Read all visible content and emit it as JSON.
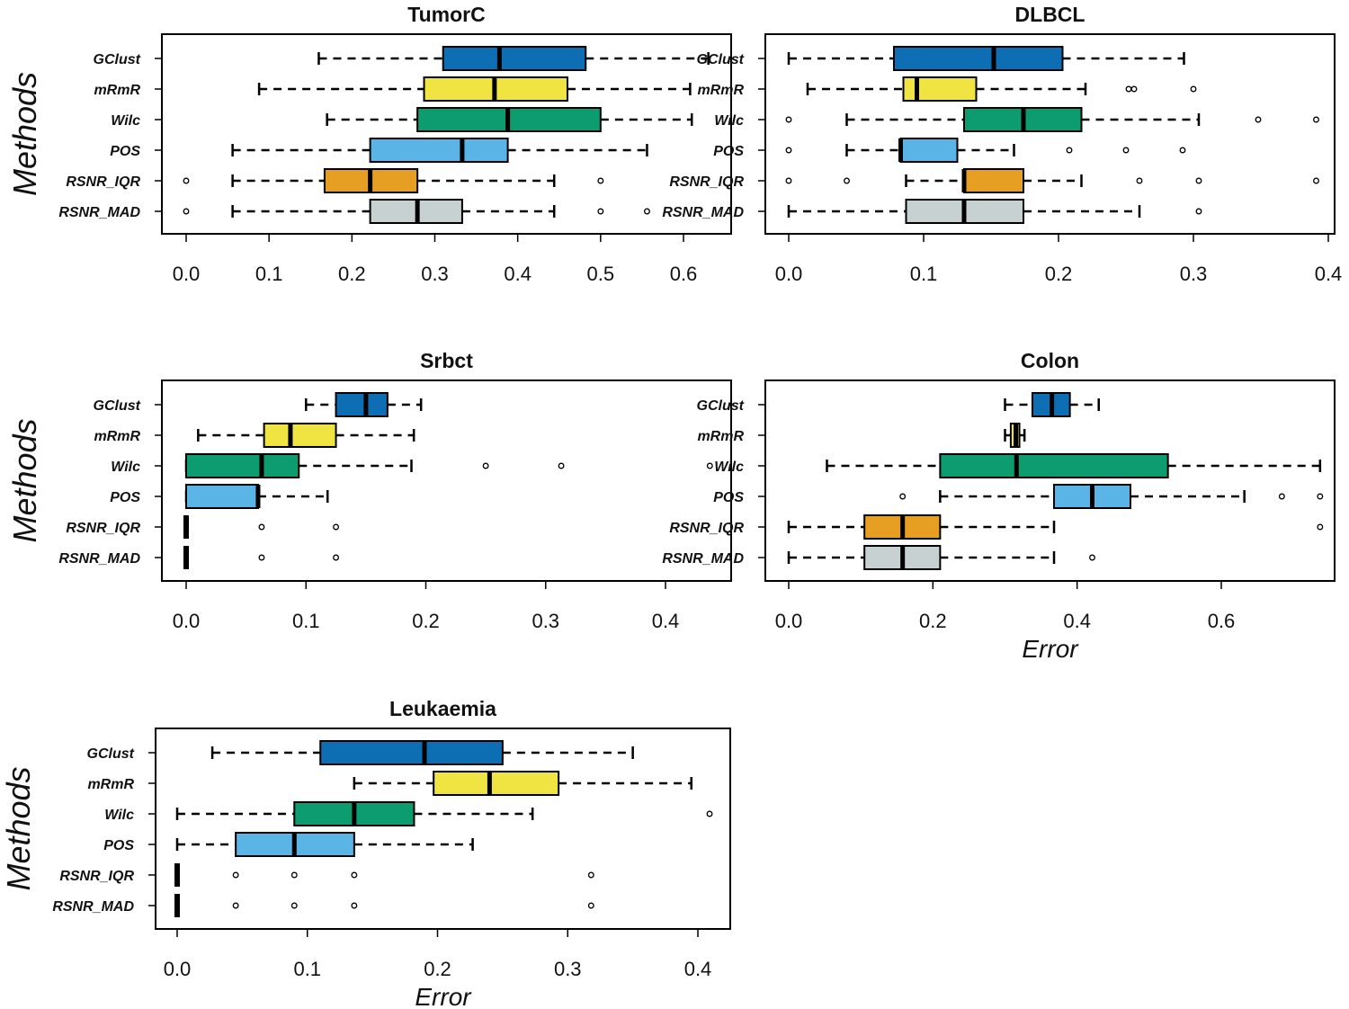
{
  "figure": {
    "ylabel": "Methods",
    "xlabel": "Error",
    "categories": [
      "GClust",
      "mRmR",
      "Wilc",
      "POS",
      "RSNR_IQR",
      "RSNR_MAD"
    ],
    "colors": {
      "GClust": "#0d6eb3",
      "mRmR": "#f0e442",
      "Wilc": "#0d9b70",
      "POS": "#5ab4e6",
      "RSNR_IQR": "#e69f22",
      "RSNR_MAD": "#c8d1d1"
    }
  },
  "chart_data": [
    {
      "type": "boxplot",
      "title": "TumorC",
      "xlabel": "",
      "ylabel": "Methods",
      "xlim": [
        0.0,
        0.65
      ],
      "ticks": [
        0.0,
        0.1,
        0.2,
        0.3,
        0.4,
        0.5,
        0.6
      ],
      "tick_labels": [
        "0.0",
        "0.1",
        "0.2",
        "0.3",
        "0.4",
        "0.5",
        "0.6"
      ],
      "boxes": [
        {
          "name": "GClust",
          "whisker_low": 0.16,
          "q1": 0.31,
          "median": 0.378,
          "q3": 0.482,
          "whisker_high": 0.63,
          "outliers": []
        },
        {
          "name": "mRmR",
          "whisker_low": 0.088,
          "q1": 0.287,
          "median": 0.372,
          "q3": 0.46,
          "whisker_high": 0.608,
          "outliers": []
        },
        {
          "name": "Wilc",
          "whisker_low": 0.17,
          "q1": 0.279,
          "median": 0.388,
          "q3": 0.5,
          "whisker_high": 0.61,
          "outliers": []
        },
        {
          "name": "POS",
          "whisker_low": 0.056,
          "q1": 0.222,
          "median": 0.333,
          "q3": 0.388,
          "whisker_high": 0.556,
          "outliers": []
        },
        {
          "name": "RSNR_IQR",
          "whisker_low": 0.056,
          "q1": 0.167,
          "median": 0.222,
          "q3": 0.279,
          "whisker_high": 0.444,
          "outliers": [
            0.0,
            0.5
          ]
        },
        {
          "name": "RSNR_MAD",
          "whisker_low": 0.056,
          "q1": 0.222,
          "median": 0.279,
          "q3": 0.333,
          "whisker_high": 0.444,
          "outliers": [
            0.0,
            0.5,
            0.556
          ]
        }
      ]
    },
    {
      "type": "boxplot",
      "title": "DLBCL",
      "xlabel": "",
      "ylabel": "",
      "xlim": [
        0.0,
        0.4
      ],
      "ticks": [
        0.0,
        0.1,
        0.2,
        0.3,
        0.4
      ],
      "tick_labels": [
        "0.0",
        "0.1",
        "0.2",
        "0.3",
        "0.4"
      ],
      "boxes": [
        {
          "name": "GClust",
          "whisker_low": 0.0,
          "q1": 0.078,
          "median": 0.152,
          "q3": 0.203,
          "whisker_high": 0.293,
          "outliers": []
        },
        {
          "name": "mRmR",
          "whisker_low": 0.014,
          "q1": 0.085,
          "median": 0.095,
          "q3": 0.139,
          "whisker_high": 0.22,
          "outliers": [
            0.252,
            0.256,
            0.3
          ]
        },
        {
          "name": "Wilc",
          "whisker_low": 0.043,
          "q1": 0.13,
          "median": 0.174,
          "q3": 0.217,
          "whisker_high": 0.304,
          "outliers": [
            0.0,
            0.348,
            0.391
          ]
        },
        {
          "name": "POS",
          "whisker_low": 0.043,
          "q1": 0.083,
          "median": 0.083,
          "q3": 0.125,
          "whisker_high": 0.167,
          "outliers": [
            0.0,
            0.208,
            0.25,
            0.292
          ]
        },
        {
          "name": "RSNR_IQR",
          "whisker_low": 0.087,
          "q1": 0.13,
          "median": 0.13,
          "q3": 0.174,
          "whisker_high": 0.217,
          "outliers": [
            0.0,
            0.043,
            0.26,
            0.304,
            0.391
          ]
        },
        {
          "name": "RSNR_MAD",
          "whisker_low": 0.0,
          "q1": 0.087,
          "median": 0.13,
          "q3": 0.174,
          "whisker_high": 0.26,
          "outliers": [
            0.304
          ]
        }
      ]
    },
    {
      "type": "boxplot",
      "title": "Srbct",
      "xlabel": "",
      "ylabel": "Methods",
      "xlim": [
        0.0,
        0.44
      ],
      "ticks": [
        0.0,
        0.1,
        0.2,
        0.3,
        0.4
      ],
      "tick_labels": [
        "0.0",
        "0.1",
        "0.2",
        "0.3",
        "0.4"
      ],
      "boxes": [
        {
          "name": "GClust",
          "whisker_low": 0.1,
          "q1": 0.125,
          "median": 0.15,
          "q3": 0.168,
          "whisker_high": 0.196,
          "outliers": []
        },
        {
          "name": "mRmR",
          "whisker_low": 0.01,
          "q1": 0.065,
          "median": 0.087,
          "q3": 0.125,
          "whisker_high": 0.19,
          "outliers": []
        },
        {
          "name": "Wilc",
          "whisker_low": 0.0,
          "q1": 0.0,
          "median": 0.063,
          "q3": 0.094,
          "whisker_high": 0.188,
          "outliers": [
            0.25,
            0.313,
            0.437
          ]
        },
        {
          "name": "POS",
          "whisker_low": 0.0,
          "q1": 0.0,
          "median": 0.06,
          "q3": 0.06,
          "whisker_high": 0.118,
          "outliers": []
        },
        {
          "name": "RSNR_IQR",
          "whisker_low": 0.0,
          "q1": 0.0,
          "median": 0.0,
          "q3": 0.0,
          "whisker_high": 0.0,
          "outliers": [
            0.063,
            0.125
          ]
        },
        {
          "name": "RSNR_MAD",
          "whisker_low": 0.0,
          "q1": 0.0,
          "median": 0.0,
          "q3": 0.0,
          "whisker_high": 0.0,
          "outliers": [
            0.063,
            0.125
          ]
        }
      ]
    },
    {
      "type": "boxplot",
      "title": "Colon",
      "xlabel": "Error",
      "ylabel": "",
      "xlim": [
        0.0,
        0.75
      ],
      "ticks": [
        0.0,
        0.2,
        0.4,
        0.6
      ],
      "tick_labels": [
        "0.0",
        "0.2",
        "0.4",
        "0.6"
      ],
      "boxes": [
        {
          "name": "GClust",
          "whisker_low": 0.3,
          "q1": 0.338,
          "median": 0.365,
          "q3": 0.39,
          "whisker_high": 0.43,
          "outliers": []
        },
        {
          "name": "mRmR",
          "whisker_low": 0.3,
          "q1": 0.308,
          "median": 0.315,
          "q3": 0.32,
          "whisker_high": 0.327,
          "outliers": []
        },
        {
          "name": "Wilc",
          "whisker_low": 0.053,
          "q1": 0.21,
          "median": 0.316,
          "q3": 0.526,
          "whisker_high": 0.737,
          "outliers": []
        },
        {
          "name": "POS",
          "whisker_low": 0.21,
          "q1": 0.368,
          "median": 0.421,
          "q3": 0.474,
          "whisker_high": 0.632,
          "outliers": [
            0.158,
            0.684,
            0.737
          ]
        },
        {
          "name": "RSNR_IQR",
          "whisker_low": 0.0,
          "q1": 0.105,
          "median": 0.158,
          "q3": 0.21,
          "whisker_high": 0.368,
          "outliers": [
            0.737
          ]
        },
        {
          "name": "RSNR_MAD",
          "whisker_low": 0.0,
          "q1": 0.105,
          "median": 0.158,
          "q3": 0.21,
          "whisker_high": 0.368,
          "outliers": [
            0.421
          ]
        }
      ]
    },
    {
      "type": "boxplot",
      "title": "Leukaemia",
      "xlabel": "Error",
      "ylabel": "Methods",
      "xlim": [
        0.0,
        0.42
      ],
      "ticks": [
        0.0,
        0.1,
        0.2,
        0.3,
        0.4
      ],
      "tick_labels": [
        "0.0",
        "0.1",
        "0.2",
        "0.3",
        "0.4"
      ],
      "boxes": [
        {
          "name": "GClust",
          "whisker_low": 0.027,
          "q1": 0.11,
          "median": 0.19,
          "q3": 0.25,
          "whisker_high": 0.35,
          "outliers": []
        },
        {
          "name": "mRmR",
          "whisker_low": 0.136,
          "q1": 0.197,
          "median": 0.24,
          "q3": 0.293,
          "whisker_high": 0.395,
          "outliers": []
        },
        {
          "name": "Wilc",
          "whisker_low": 0.0,
          "q1": 0.09,
          "median": 0.136,
          "q3": 0.182,
          "whisker_high": 0.273,
          "outliers": [
            0.409
          ]
        },
        {
          "name": "POS",
          "whisker_low": 0.0,
          "q1": 0.045,
          "median": 0.09,
          "q3": 0.136,
          "whisker_high": 0.227,
          "outliers": []
        },
        {
          "name": "RSNR_IQR",
          "whisker_low": 0.0,
          "q1": 0.0,
          "median": 0.0,
          "q3": 0.0,
          "whisker_high": 0.0,
          "outliers": [
            0.045,
            0.09,
            0.136,
            0.318
          ]
        },
        {
          "name": "RSNR_MAD",
          "whisker_low": 0.0,
          "q1": 0.0,
          "median": 0.0,
          "q3": 0.0,
          "whisker_high": 0.0,
          "outliers": [
            0.045,
            0.09,
            0.136,
            0.318
          ]
        }
      ]
    }
  ]
}
